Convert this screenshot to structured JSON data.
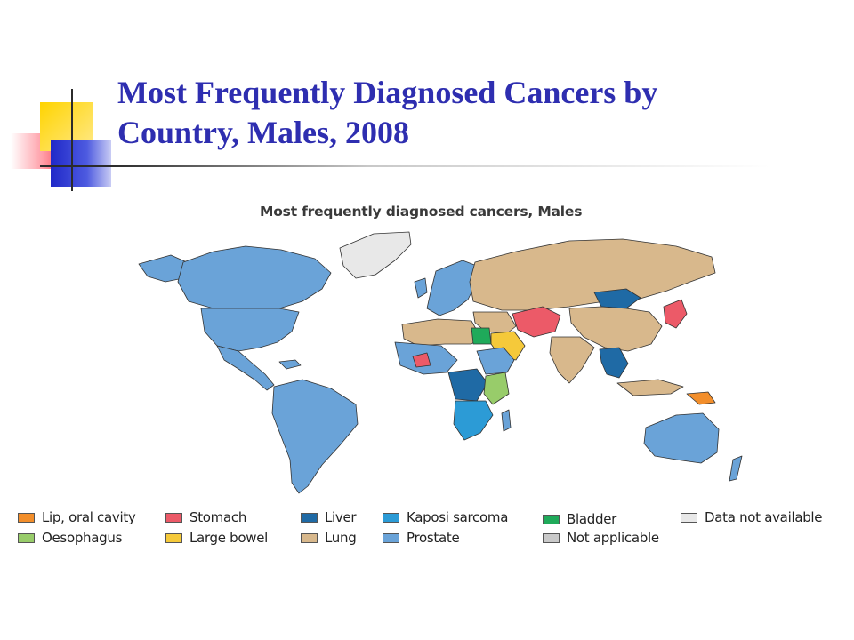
{
  "slide": {
    "title_line1": "Most Frequently Diagnosed Cancers by",
    "title_line2": "Country, Males, 2008"
  },
  "map": {
    "heading": "Most frequently diagnosed cancers, Males",
    "colors": {
      "lip_oral": "#f28e2b",
      "oesophagus": "#98cc6a",
      "stomach": "#ec5a68",
      "large_bowel": "#f5c93a",
      "liver": "#1f6aa5",
      "lung": "#d8b88c",
      "kaposi": "#2c9bd6",
      "prostate": "#6aa3d8",
      "bladder": "#1faa5a",
      "not_applicable": "#c9c9c9",
      "no_data": "#e8e8e8"
    },
    "legend": [
      {
        "label": "Lip, oral cavity",
        "color": "#f28e2b"
      },
      {
        "label": "Oesophagus",
        "color": "#98cc6a"
      },
      {
        "label": "Stomach",
        "color": "#ec5a68"
      },
      {
        "label": "Large bowel",
        "color": "#f5c93a"
      },
      {
        "label": "Liver",
        "color": "#1f6aa5"
      },
      {
        "label": "Lung",
        "color": "#d8b88c"
      },
      {
        "label": "Kaposi sarcoma",
        "color": "#2c9bd6"
      },
      {
        "label": "Prostate",
        "color": "#6aa3d8"
      },
      {
        "label": "Bladder",
        "color": "#1faa5a"
      },
      {
        "label": "Not applicable",
        "color": "#c9c9c9"
      },
      {
        "label": "Data not available",
        "color": "#e8e8e8"
      }
    ]
  }
}
